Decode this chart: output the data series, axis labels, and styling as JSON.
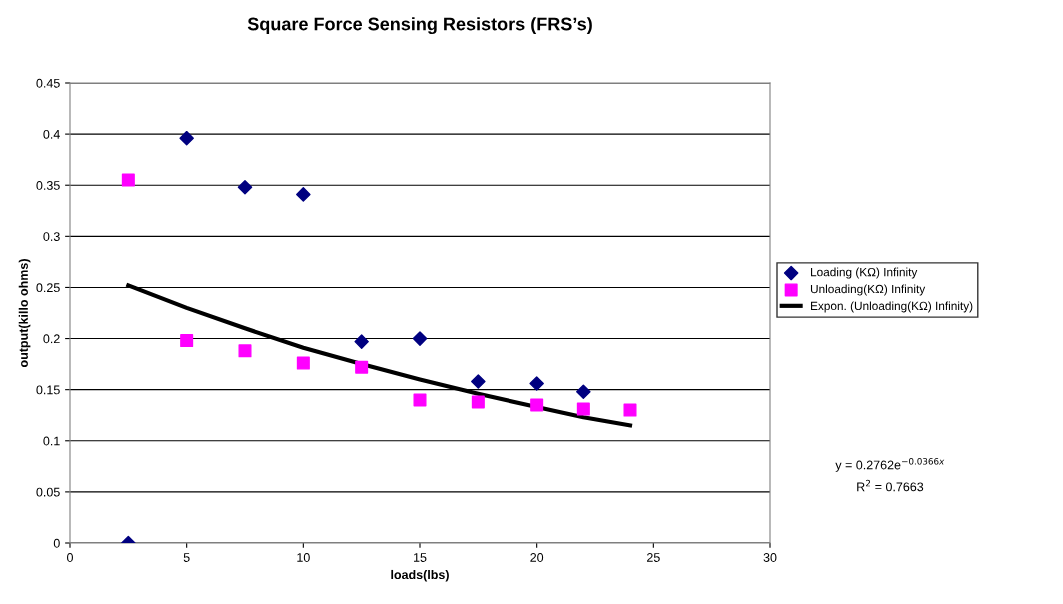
{
  "chart_data": {
    "type": "scatter",
    "title": "Square Force Sensing Resistors (FRS’s)",
    "xlabel": "loads(lbs)",
    "ylabel": "output(killo ohms)",
    "xlim": [
      0,
      30
    ],
    "xticks": [
      0,
      5,
      10,
      15,
      20,
      25,
      30
    ],
    "ylim": [
      0,
      0.45
    ],
    "yticks": [
      0,
      0.05,
      0.1,
      0.15,
      0.2,
      0.25,
      0.3,
      0.35,
      0.4,
      0.45
    ],
    "grid": "y",
    "legend": "right",
    "series": [
      {
        "name": "Loading (KΩ) Infinity",
        "marker": "diamond",
        "color": "#000080",
        "x": [
          2.5,
          5,
          7.5,
          10,
          12.5,
          15,
          17.5,
          20,
          22
        ],
        "values": [
          0,
          0.396,
          0.348,
          0.341,
          0.197,
          0.2,
          0.158,
          0.156,
          0.148
        ]
      },
      {
        "name": "Unloading(KΩ) Infinity",
        "marker": "square",
        "color": "#ff00ff",
        "x": [
          2.5,
          5,
          7.5,
          10,
          12.5,
          15,
          17.5,
          20,
          22,
          24
        ],
        "values": [
          0.355,
          0.198,
          0.188,
          0.176,
          0.172,
          0.14,
          0.138,
          0.135,
          0.131,
          0.13
        ]
      },
      {
        "name": "Expon. (Unloading(KΩ) Infinity)",
        "type": "line",
        "marker": "none",
        "line_style": "solid",
        "color": "#000000",
        "x": [
          2.5,
          5,
          7.5,
          10,
          12.5,
          15,
          17.5,
          20,
          22,
          24
        ],
        "values": [
          0.252,
          0.23,
          0.21,
          0.191,
          0.175,
          0.16,
          0.146,
          0.133,
          0.123,
          0.115
        ]
      }
    ],
    "annotations": [
      "y = 0.2762e$^{−0.0366x}$",
      "R$^{2}$ = 0.7663"
    ]
  }
}
